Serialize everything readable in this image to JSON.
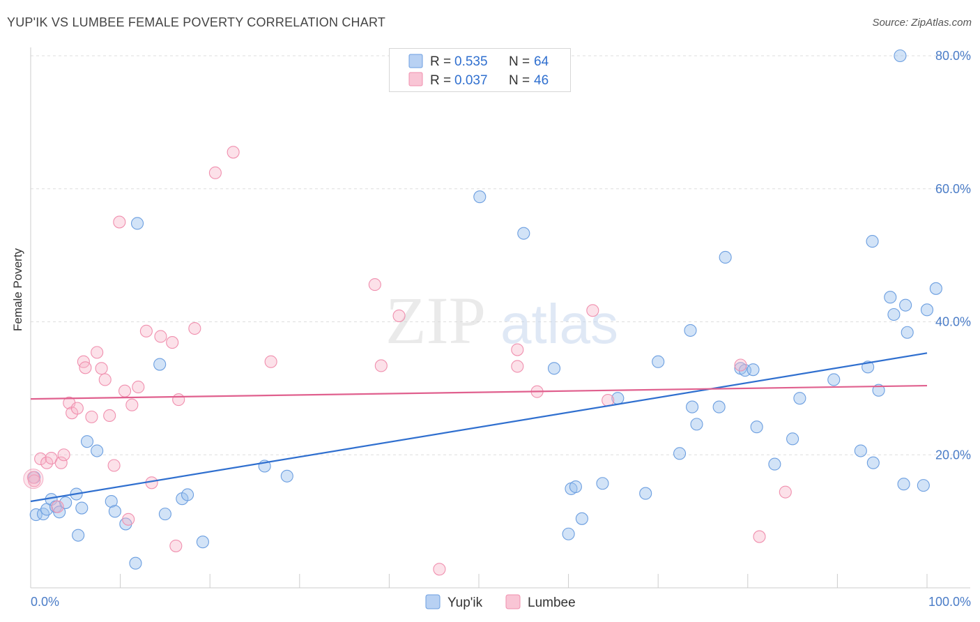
{
  "title": "YUP'IK VS LUMBEE FEMALE POVERTY CORRELATION CHART",
  "source": "Source: ZipAtlas.com",
  "watermark": {
    "zip": "ZIP",
    "atlas": "atlas"
  },
  "colors": {
    "yupik": "#6b9ee0",
    "lumbee": "#f08fae",
    "yupik_line": "#2f6fcf",
    "lumbee_line": "#e0608e",
    "tick": "#4a7cc7"
  },
  "chart_data": {
    "type": "scatter",
    "ylabel": "Female Poverty",
    "xlim": [
      0,
      100
    ],
    "ylim": [
      0,
      80
    ],
    "x_tick_labels": [
      "0.0%",
      "100.0%"
    ],
    "y_ticks": [
      20,
      40,
      60,
      80
    ],
    "y_tick_labels": [
      "20.0%",
      "40.0%",
      "60.0%",
      "80.0%"
    ],
    "legend_stats": [
      {
        "r_label": "R =",
        "r_value": "0.535",
        "n_label": "N =",
        "n_value": "64"
      },
      {
        "r_label": "R =",
        "r_value": "0.037",
        "n_label": "N =",
        "n_value": "46"
      }
    ],
    "series": [
      {
        "name": "Yup'ik",
        "trend": {
          "start": [
            0,
            13.0
          ],
          "end": [
            100,
            35.3
          ]
        },
        "points": [
          [
            0.4,
            16.6
          ],
          [
            0.6,
            11.0
          ],
          [
            1.4,
            11.1
          ],
          [
            1.8,
            11.8
          ],
          [
            2.3,
            13.3
          ],
          [
            2.8,
            12.2
          ],
          [
            3.2,
            11.4
          ],
          [
            3.9,
            12.8
          ],
          [
            5.1,
            14.1
          ],
          [
            5.3,
            7.9
          ],
          [
            5.7,
            12.0
          ],
          [
            6.3,
            22.0
          ],
          [
            7.4,
            20.6
          ],
          [
            9.0,
            13.0
          ],
          [
            9.4,
            11.5
          ],
          [
            10.6,
            9.6
          ],
          [
            11.7,
            3.7
          ],
          [
            11.9,
            54.8
          ],
          [
            14.4,
            33.6
          ],
          [
            15.0,
            11.1
          ],
          [
            16.9,
            13.4
          ],
          [
            17.5,
            14.0
          ],
          [
            19.2,
            6.9
          ],
          [
            26.1,
            18.3
          ],
          [
            28.6,
            16.8
          ],
          [
            50.1,
            58.8
          ],
          [
            55.0,
            53.3
          ],
          [
            58.4,
            33.0
          ],
          [
            60.0,
            8.1
          ],
          [
            60.3,
            14.9
          ],
          [
            60.8,
            15.2
          ],
          [
            61.5,
            10.4
          ],
          [
            63.8,
            15.7
          ],
          [
            65.5,
            28.5
          ],
          [
            68.6,
            14.2
          ],
          [
            70.0,
            34.0
          ],
          [
            72.4,
            20.2
          ],
          [
            73.6,
            38.7
          ],
          [
            73.8,
            27.2
          ],
          [
            74.3,
            24.6
          ],
          [
            76.8,
            27.2
          ],
          [
            77.5,
            49.7
          ],
          [
            79.2,
            33.0
          ],
          [
            79.7,
            32.7
          ],
          [
            80.6,
            32.8
          ],
          [
            81.0,
            24.2
          ],
          [
            83.0,
            18.6
          ],
          [
            85.0,
            22.4
          ],
          [
            85.8,
            28.5
          ],
          [
            89.6,
            31.3
          ],
          [
            92.6,
            20.6
          ],
          [
            93.4,
            33.2
          ],
          [
            93.9,
            52.1
          ],
          [
            94.0,
            18.8
          ],
          [
            94.6,
            29.7
          ],
          [
            95.9,
            43.7
          ],
          [
            96.3,
            41.1
          ],
          [
            97.4,
            15.6
          ],
          [
            97.0,
            80.0
          ],
          [
            97.6,
            42.5
          ],
          [
            97.8,
            38.4
          ],
          [
            99.6,
            15.4
          ],
          [
            100.0,
            41.8
          ],
          [
            101.0,
            45.0
          ]
        ]
      },
      {
        "name": "Lumbee",
        "trend": {
          "start": [
            0,
            28.4
          ],
          "end": [
            100,
            30.4
          ]
        },
        "points": [
          [
            0.3,
            16.6
          ],
          [
            0.4,
            16.1
          ],
          [
            1.1,
            19.4
          ],
          [
            1.8,
            18.8
          ],
          [
            2.3,
            19.5
          ],
          [
            3.0,
            12.2
          ],
          [
            3.4,
            18.8
          ],
          [
            3.7,
            20.0
          ],
          [
            4.3,
            27.8
          ],
          [
            4.6,
            26.3
          ],
          [
            5.2,
            27.0
          ],
          [
            5.9,
            34.0
          ],
          [
            6.1,
            33.1
          ],
          [
            6.8,
            25.7
          ],
          [
            7.4,
            35.4
          ],
          [
            7.9,
            33.0
          ],
          [
            8.3,
            31.3
          ],
          [
            8.8,
            25.9
          ],
          [
            9.3,
            18.4
          ],
          [
            9.9,
            55.0
          ],
          [
            10.5,
            29.6
          ],
          [
            10.9,
            10.3
          ],
          [
            11.3,
            27.5
          ],
          [
            12.0,
            30.2
          ],
          [
            12.9,
            38.6
          ],
          [
            13.5,
            15.8
          ],
          [
            14.5,
            37.8
          ],
          [
            15.8,
            36.9
          ],
          [
            16.2,
            6.3
          ],
          [
            16.5,
            28.3
          ],
          [
            18.3,
            39.0
          ],
          [
            20.6,
            62.4
          ],
          [
            22.6,
            65.5
          ],
          [
            26.8,
            34.0
          ],
          [
            38.4,
            45.6
          ],
          [
            39.1,
            33.4
          ],
          [
            41.1,
            40.9
          ],
          [
            45.6,
            2.8
          ],
          [
            54.3,
            35.8
          ],
          [
            54.3,
            33.3
          ],
          [
            56.5,
            29.5
          ],
          [
            62.7,
            41.7
          ],
          [
            64.4,
            28.2
          ],
          [
            79.2,
            33.5
          ],
          [
            81.3,
            7.7
          ],
          [
            84.2,
            14.4
          ]
        ]
      }
    ]
  }
}
